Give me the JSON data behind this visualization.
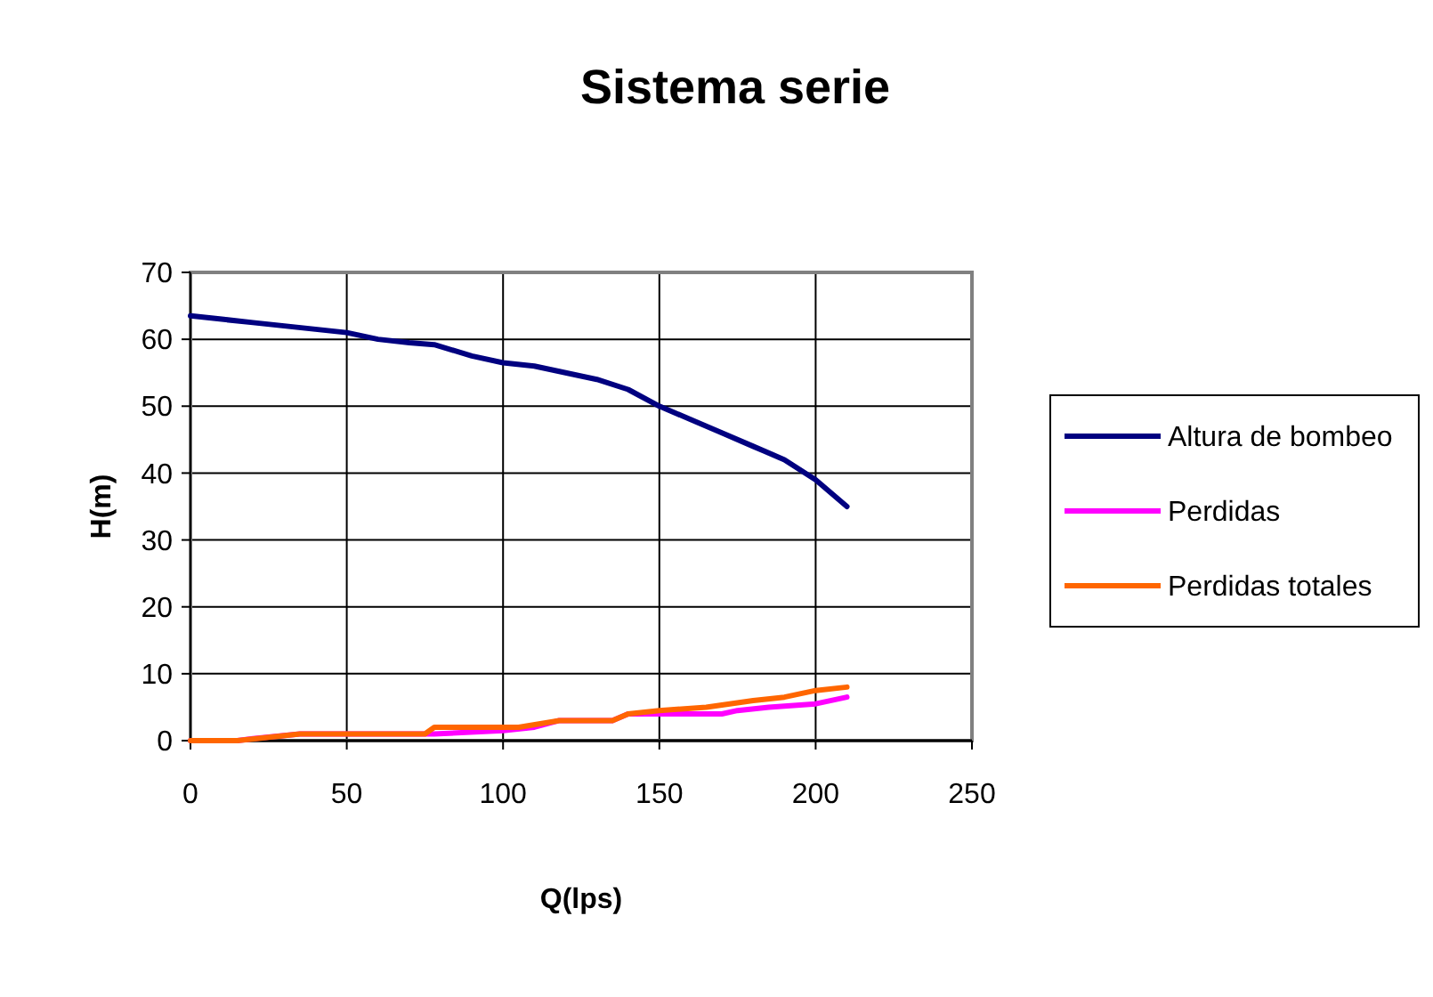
{
  "chart_data": {
    "type": "line",
    "title": "Sistema serie",
    "xlabel": "Q(lps)",
    "ylabel": "H(m)",
    "xlim": [
      0,
      250
    ],
    "xticks": [
      0,
      50,
      100,
      150,
      200,
      250
    ],
    "ylim": [
      0,
      70
    ],
    "yticks": [
      0,
      10,
      20,
      30,
      40,
      50,
      60,
      70
    ],
    "grid": true,
    "legend": "right",
    "series": [
      {
        "name": "Altura de bombeo",
        "color": "#000080",
        "x": [
          0,
          10,
          20,
          30,
          40,
          50,
          60,
          70,
          78,
          90,
          100,
          110,
          120,
          130,
          140,
          150,
          160,
          170,
          180,
          190,
          200,
          210
        ],
        "values": [
          63.5,
          63,
          62.5,
          62,
          61.5,
          61,
          60,
          59.5,
          59.2,
          57.5,
          56.5,
          56,
          55,
          54,
          52.5,
          50,
          48,
          46,
          44,
          42,
          39,
          35
        ]
      },
      {
        "name": "Perdidas",
        "color": "#ff00ff",
        "x": [
          0,
          15,
          20,
          35,
          75,
          78,
          100,
          110,
          118,
          135,
          140,
          150,
          170,
          175,
          185,
          200,
          210
        ],
        "values": [
          0,
          0,
          0.3,
          1,
          1,
          1,
          1.5,
          2,
          3,
          3,
          4,
          4,
          4,
          4.5,
          5,
          5.5,
          6.5
        ]
      },
      {
        "name": "Perdidas totales",
        "color": "#ff6600",
        "x": [
          0,
          15,
          35,
          75,
          78,
          105,
          118,
          135,
          140,
          150,
          165,
          180,
          190,
          200,
          210
        ],
        "values": [
          0,
          0,
          1,
          1,
          2,
          2,
          3,
          3,
          4,
          4.5,
          5,
          6,
          6.5,
          7.5,
          8
        ]
      }
    ]
  }
}
